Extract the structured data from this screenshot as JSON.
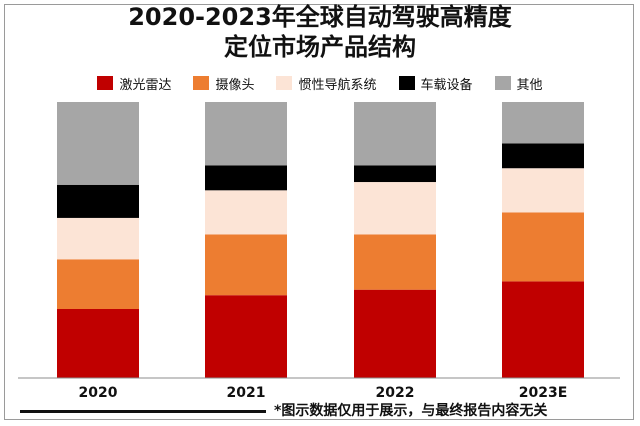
{
  "title_line1": "2020-2023年全球自动驾驶高精度",
  "title_line2": "定位市场产品结构",
  "footnote": "*图示数据仅用于展示，与最终报告内容无关",
  "chart_data": {
    "type": "bar",
    "stacked": true,
    "percent_stacked": true,
    "categories": [
      "2020",
      "2021",
      "2022",
      "2023E"
    ],
    "ylim": [
      0,
      100
    ],
    "legend_position": "top",
    "series": [
      {
        "name": "激光雷达",
        "color": "#c00000",
        "values": [
          25,
          30,
          32,
          35
        ]
      },
      {
        "name": "摄像头",
        "color": "#ed7d31",
        "values": [
          18,
          22,
          20,
          25
        ]
      },
      {
        "name": "惯性导航系统",
        "color": "#fce4d6",
        "values": [
          15,
          16,
          19,
          16
        ]
      },
      {
        "name": "车载设备",
        "color": "#000000",
        "values": [
          12,
          9,
          6,
          9
        ]
      },
      {
        "name": "其他",
        "color": "#a6a6a6",
        "values": [
          30,
          23,
          23,
          15
        ]
      }
    ]
  }
}
